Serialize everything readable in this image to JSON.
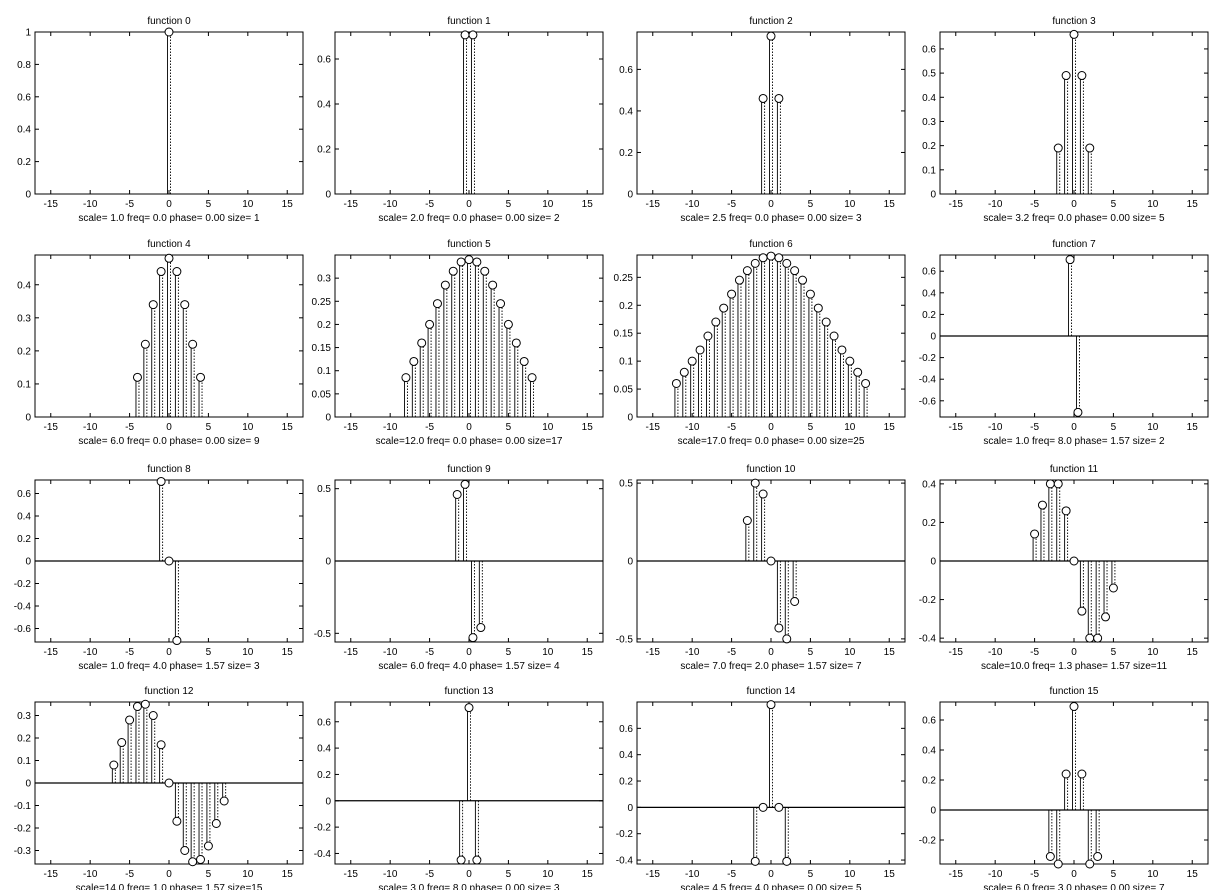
{
  "chart_data": [
    {
      "type": "stem",
      "title": "function 0",
      "caption": "scale= 1.0 freq= 0.0  phase= 0.00  size= 1",
      "xlim": [
        -17,
        17
      ],
      "ylim": [
        0,
        1
      ],
      "xticks": [
        -15,
        -10,
        -5,
        0,
        5,
        10,
        15
      ],
      "yticks": [
        0,
        0.2,
        0.4,
        0.6,
        0.8,
        1
      ],
      "x": [
        0
      ],
      "values": [
        1
      ]
    },
    {
      "type": "stem",
      "title": "function 1",
      "caption": "scale= 2.0 freq= 0.0  phase= 0.00  size= 2",
      "xlim": [
        -17,
        17
      ],
      "ylim": [
        0,
        0.72
      ],
      "xticks": [
        -15,
        -10,
        -5,
        0,
        5,
        10,
        15
      ],
      "yticks": [
        0,
        0.2,
        0.4,
        0.6
      ],
      "x": [
        -0.5,
        0.5
      ],
      "values": [
        0.707,
        0.707
      ]
    },
    {
      "type": "stem",
      "title": "function 2",
      "caption": "scale= 2.5 freq= 0.0  phase= 0.00  size= 3",
      "xlim": [
        -17,
        17
      ],
      "ylim": [
        0,
        0.78
      ],
      "xticks": [
        -15,
        -10,
        -5,
        0,
        5,
        10,
        15
      ],
      "yticks": [
        0,
        0.2,
        0.4,
        0.6
      ],
      "x": [
        -1,
        0,
        1
      ],
      "values": [
        0.46,
        0.76,
        0.46
      ]
    },
    {
      "type": "stem",
      "title": "function 3",
      "caption": "scale= 3.2 freq= 0.0  phase= 0.00  size= 5",
      "xlim": [
        -17,
        17
      ],
      "ylim": [
        0,
        0.67
      ],
      "xticks": [
        -15,
        -10,
        -5,
        0,
        5,
        10,
        15
      ],
      "yticks": [
        0,
        0.1,
        0.2,
        0.3,
        0.4,
        0.5,
        0.6
      ],
      "x": [
        -2,
        -1,
        0,
        1,
        2
      ],
      "values": [
        0.19,
        0.49,
        0.66,
        0.49,
        0.19
      ]
    },
    {
      "type": "stem",
      "title": "function 4",
      "caption": "scale= 6.0 freq= 0.0  phase= 0.00  size= 9",
      "xlim": [
        -17,
        17
      ],
      "ylim": [
        0,
        0.49
      ],
      "xticks": [
        -15,
        -10,
        -5,
        0,
        5,
        10,
        15
      ],
      "yticks": [
        0,
        0.1,
        0.2,
        0.3,
        0.4
      ],
      "x": [
        -4,
        -3,
        -2,
        -1,
        0,
        1,
        2,
        3,
        4
      ],
      "values": [
        0.12,
        0.22,
        0.34,
        0.44,
        0.48,
        0.44,
        0.34,
        0.22,
        0.12
      ]
    },
    {
      "type": "stem",
      "title": "function 5",
      "caption": "scale=12.0 freq= 0.0  phase= 0.00  size=17",
      "xlim": [
        -17,
        17
      ],
      "ylim": [
        0,
        0.35
      ],
      "xticks": [
        -15,
        -10,
        -5,
        0,
        5,
        10,
        15
      ],
      "yticks": [
        0,
        0.05,
        0.1,
        0.15,
        0.2,
        0.25,
        0.3
      ],
      "x": [
        -8,
        -7,
        -6,
        -5,
        -4,
        -3,
        -2,
        -1,
        0,
        1,
        2,
        3,
        4,
        5,
        6,
        7,
        8
      ],
      "values": [
        0.085,
        0.12,
        0.16,
        0.2,
        0.245,
        0.285,
        0.315,
        0.335,
        0.34,
        0.335,
        0.315,
        0.285,
        0.245,
        0.2,
        0.16,
        0.12,
        0.085
      ]
    },
    {
      "type": "stem",
      "title": "function 6",
      "caption": "scale=17.0 freq= 0.0  phase= 0.00  size=25",
      "xlim": [
        -17,
        17
      ],
      "ylim": [
        0,
        0.29
      ],
      "xticks": [
        -15,
        -10,
        -5,
        0,
        5,
        10,
        15
      ],
      "yticks": [
        0,
        0.05,
        0.1,
        0.15,
        0.2,
        0.25
      ],
      "x": [
        -12,
        -11,
        -10,
        -9,
        -8,
        -7,
        -6,
        -5,
        -4,
        -3,
        -2,
        -1,
        0,
        1,
        2,
        3,
        4,
        5,
        6,
        7,
        8,
        9,
        10,
        11,
        12
      ],
      "values": [
        0.06,
        0.08,
        0.1,
        0.12,
        0.145,
        0.17,
        0.195,
        0.22,
        0.245,
        0.262,
        0.275,
        0.285,
        0.288,
        0.285,
        0.275,
        0.262,
        0.245,
        0.22,
        0.195,
        0.17,
        0.145,
        0.12,
        0.1,
        0.08,
        0.06
      ]
    },
    {
      "type": "stem",
      "title": "function 7",
      "caption": "scale= 1.0 freq= 8.0  phase= 1.57  size= 2",
      "xlim": [
        -17,
        17
      ],
      "ylim": [
        -0.75,
        0.75
      ],
      "xticks": [
        -15,
        -10,
        -5,
        0,
        5,
        10,
        15
      ],
      "yticks": [
        -0.6,
        -0.4,
        -0.2,
        0,
        0.2,
        0.4,
        0.6
      ],
      "x": [
        -0.5,
        0.5
      ],
      "values": [
        0.707,
        -0.707
      ]
    },
    {
      "type": "stem",
      "title": "function 8",
      "caption": "scale= 1.0 freq= 4.0  phase= 1.57  size= 3",
      "xlim": [
        -17,
        17
      ],
      "ylim": [
        -0.72,
        0.72
      ],
      "xticks": [
        -15,
        -10,
        -5,
        0,
        5,
        10,
        15
      ],
      "yticks": [
        -0.6,
        -0.4,
        -0.2,
        0,
        0.2,
        0.4,
        0.6
      ],
      "x": [
        -1,
        0,
        1
      ],
      "values": [
        0.707,
        0,
        -0.707
      ]
    },
    {
      "type": "stem",
      "title": "function 9",
      "caption": "scale= 6.0 freq= 4.0  phase= 1.57  size= 4",
      "xlim": [
        -17,
        17
      ],
      "ylim": [
        -0.56,
        0.56
      ],
      "xticks": [
        -15,
        -10,
        -5,
        0,
        5,
        10,
        15
      ],
      "yticks": [
        -0.5,
        0,
        0.5
      ],
      "x": [
        -1.5,
        -0.5,
        0.5,
        1.5
      ],
      "values": [
        0.46,
        0.53,
        -0.53,
        -0.46
      ]
    },
    {
      "type": "stem",
      "title": "function 10",
      "caption": "scale= 7.0 freq= 2.0  phase= 1.57  size= 7",
      "xlim": [
        -17,
        17
      ],
      "ylim": [
        -0.52,
        0.52
      ],
      "xticks": [
        -15,
        -10,
        -5,
        0,
        5,
        10,
        15
      ],
      "yticks": [
        -0.5,
        0,
        0.5
      ],
      "x": [
        -3,
        -2,
        -1,
        0,
        1,
        2,
        3
      ],
      "values": [
        0.26,
        0.5,
        0.43,
        0,
        -0.43,
        -0.5,
        -0.26
      ]
    },
    {
      "type": "stem",
      "title": "function 11",
      "caption": "scale=10.0 freq= 1.3  phase= 1.57  size=11",
      "xlim": [
        -17,
        17
      ],
      "ylim": [
        -0.42,
        0.42
      ],
      "xticks": [
        -15,
        -10,
        -5,
        0,
        5,
        10,
        15
      ],
      "yticks": [
        -0.4,
        -0.2,
        0,
        0.2,
        0.4
      ],
      "x": [
        -5,
        -4,
        -3,
        -2,
        -1,
        0,
        1,
        2,
        3,
        4,
        5
      ],
      "values": [
        0.14,
        0.29,
        0.4,
        0.4,
        0.26,
        0,
        -0.26,
        -0.4,
        -0.4,
        -0.29,
        -0.14
      ]
    },
    {
      "type": "stem",
      "title": "function 12",
      "caption": "scale=14.0 freq= 1.0  phase= 1.57  size=15",
      "xlim": [
        -17,
        17
      ],
      "ylim": [
        -0.36,
        0.36
      ],
      "xticks": [
        -15,
        -10,
        -5,
        0,
        5,
        10,
        15
      ],
      "yticks": [
        -0.3,
        -0.2,
        -0.1,
        0,
        0.1,
        0.2,
        0.3
      ],
      "x": [
        -7,
        -6,
        -5,
        -4,
        -3,
        -2,
        -1,
        0,
        1,
        2,
        3,
        4,
        5,
        6,
        7
      ],
      "values": [
        0.08,
        0.18,
        0.28,
        0.34,
        0.35,
        0.3,
        0.17,
        0,
        -0.17,
        -0.3,
        -0.35,
        -0.34,
        -0.28,
        -0.18,
        -0.08
      ]
    },
    {
      "type": "stem",
      "title": "function 13",
      "caption": "scale= 3.0 freq= 8.0  phase= 0.00  size= 3",
      "xlim": [
        -17,
        17
      ],
      "ylim": [
        -0.48,
        0.75
      ],
      "xticks": [
        -15,
        -10,
        -5,
        0,
        5,
        10,
        15
      ],
      "yticks": [
        -0.4,
        -0.2,
        0,
        0.2,
        0.4,
        0.6
      ],
      "x": [
        -1,
        0,
        1
      ],
      "values": [
        -0.45,
        0.707,
        -0.45
      ]
    },
    {
      "type": "stem",
      "title": "function 14",
      "caption": "scale= 4.5 freq= 4.0  phase= 0.00  size= 5",
      "xlim": [
        -17,
        17
      ],
      "ylim": [
        -0.43,
        0.8
      ],
      "xticks": [
        -15,
        -10,
        -5,
        0,
        5,
        10,
        15
      ],
      "yticks": [
        -0.4,
        -0.2,
        0,
        0.2,
        0.4,
        0.6
      ],
      "x": [
        -2,
        -1,
        0,
        1,
        2
      ],
      "values": [
        -0.41,
        0,
        0.78,
        0,
        -0.41
      ]
    },
    {
      "type": "stem",
      "title": "function 15",
      "caption": "scale= 6.0 freq= 3.0  phase= 0.00  size= 7",
      "xlim": [
        -17,
        17
      ],
      "ylim": [
        -0.36,
        0.72
      ],
      "xticks": [
        -15,
        -10,
        -5,
        0,
        5,
        10,
        15
      ],
      "yticks": [
        -0.2,
        0,
        0.2,
        0.4,
        0.6
      ],
      "x": [
        -3,
        -2,
        -1,
        0,
        1,
        2,
        3
      ],
      "values": [
        -0.31,
        -0.36,
        0.24,
        0.69,
        0.24,
        -0.36,
        -0.31
      ]
    }
  ]
}
